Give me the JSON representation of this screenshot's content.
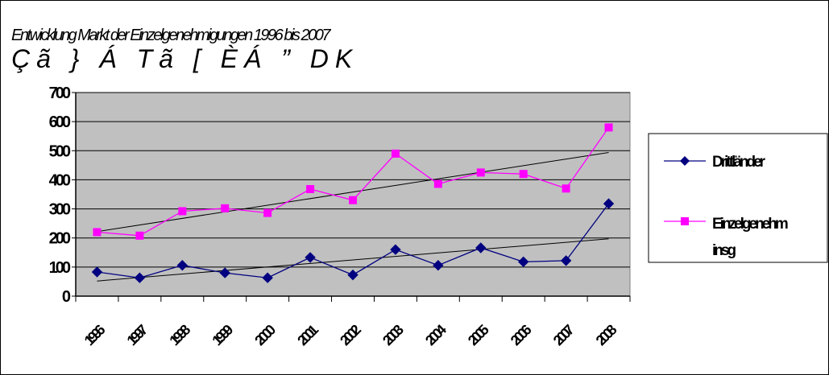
{
  "chart_data": {
    "type": "line",
    "title": "Entwicklung Markt der Einzelgenehmigungen 1996 bis 2007",
    "subtitle": "Çã } Á Tã [ ÈÁ ” DK",
    "categories": [
      "1996",
      "1997",
      "1998",
      "1999",
      "2000",
      "2001",
      "2002",
      "2003",
      "2004",
      "2005",
      "2006",
      "2007",
      "2008"
    ],
    "series": [
      {
        "name": "Drittländer",
        "color": "#000080",
        "marker": "diamond",
        "values": [
          83,
          63,
          106,
          80,
          63,
          133,
          73,
          160,
          106,
          166,
          118,
          122,
          318
        ]
      },
      {
        "name": "Einzelgenehm insg",
        "color": "#ff00ff",
        "marker": "square",
        "values": [
          220,
          208,
          292,
          302,
          286,
          368,
          330,
          490,
          386,
          425,
          420,
          370,
          580
        ]
      }
    ],
    "trendlines": [
      {
        "series": "Drittländer",
        "start": 52,
        "end": 197
      },
      {
        "series": "Einzelgenehm insg",
        "start": 222,
        "end": 494
      }
    ],
    "ylim": [
      0,
      700
    ],
    "yticks": [
      "0",
      "100",
      "200",
      "300",
      "400",
      "500",
      "600",
      "700"
    ],
    "xlabel": "",
    "ylabel": "",
    "grid": true,
    "plot_background": "#c0c0c0",
    "legend_position": "right"
  }
}
